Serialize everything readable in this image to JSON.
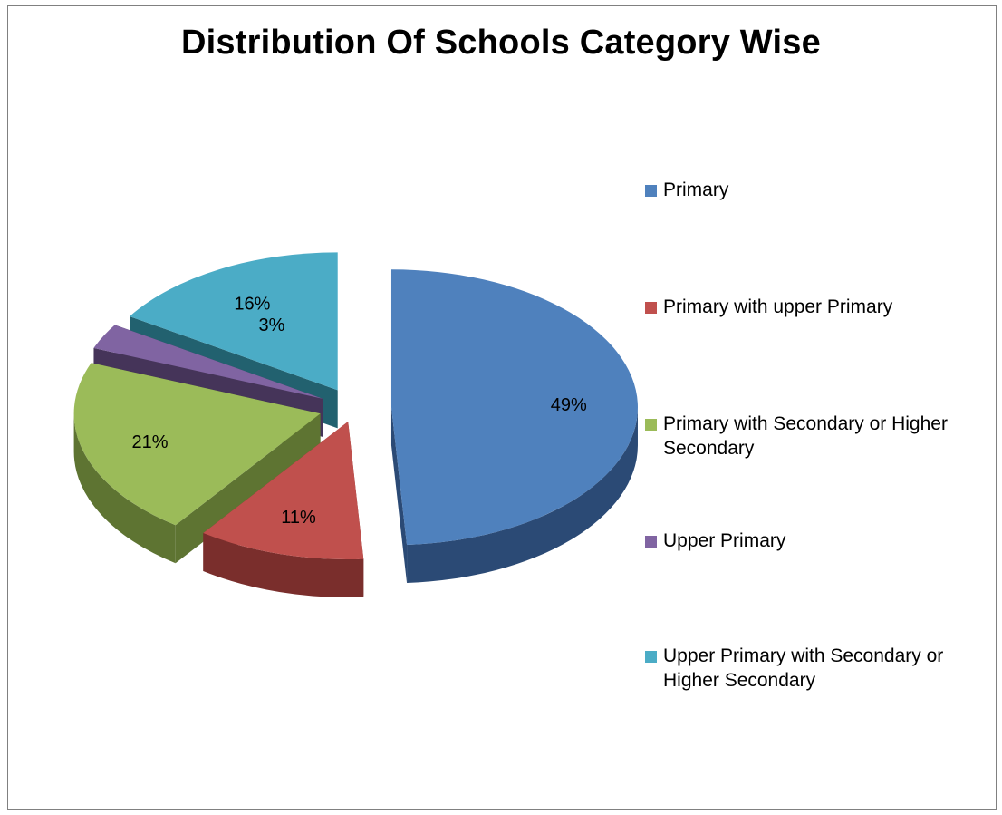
{
  "chart_data": {
    "type": "pie",
    "title": "Distribution Of Schools Category Wise",
    "categories": [
      "Primary",
      "Primary with upper Primary",
      "Primary with Secondary or Higher Secondary",
      "Upper Primary",
      "Upper Primary with Secondary or Higher Secondary"
    ],
    "values": [
      49,
      11,
      21,
      3,
      16
    ],
    "data_labels": [
      "49%",
      "11%",
      "21%",
      "3%",
      "16%"
    ],
    "colors": [
      "#4F81BD",
      "#C0504D",
      "#9BBB59",
      "#8064A2",
      "#4BACC6"
    ],
    "side_colors": [
      "#2B4A75",
      "#7A2E2C",
      "#5E7432",
      "#453459",
      "#22616F"
    ],
    "three_d": true,
    "exploded": true,
    "legend_position": "right"
  }
}
